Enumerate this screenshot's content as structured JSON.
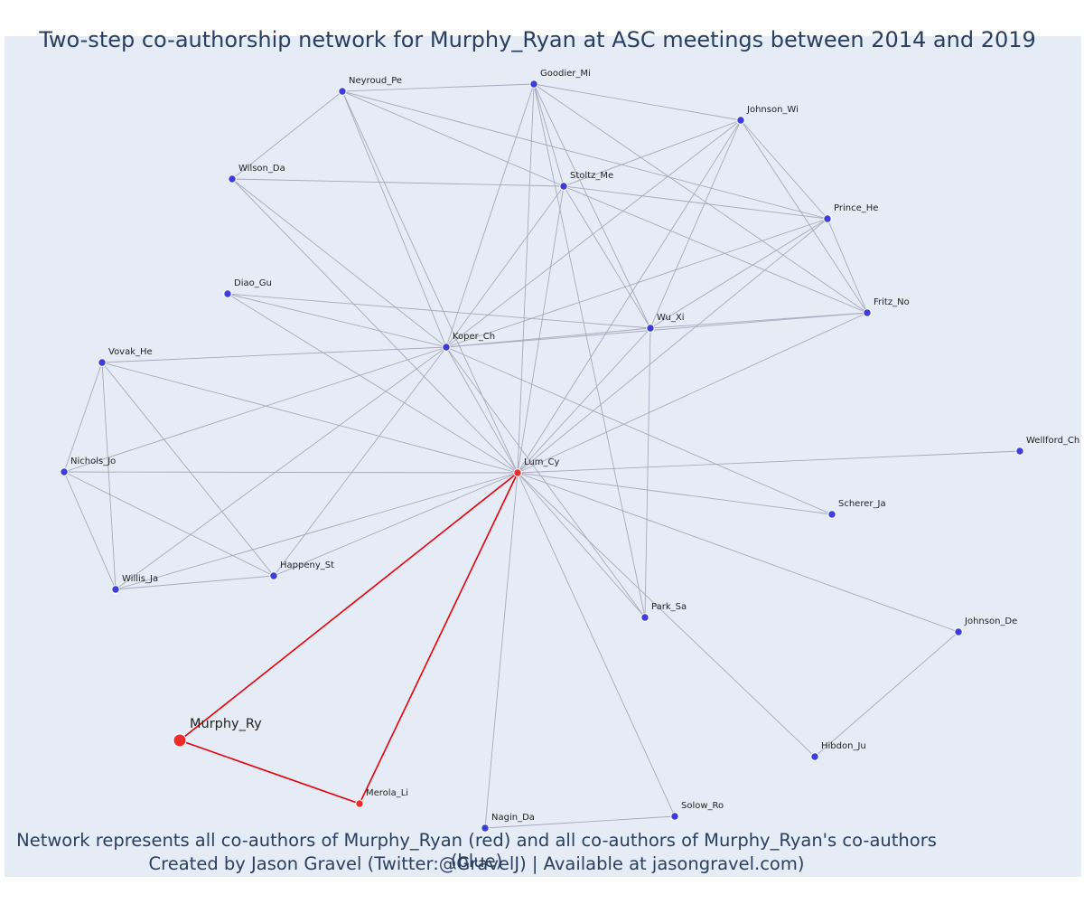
{
  "title": "Two-step co-authorship network for Murphy_Ryan at ASC meetings between 2014 and 2019",
  "caption_line1": "Network represents all co-authors of Murphy_Ryan (red) and all co-authors of Murphy_Ryan's co-authors (blue)",
  "caption_line2": "Created by Jason Gravel (Twitter:@GravelJ) | Available at jasongravel.com)",
  "colors": {
    "plot_bg": "#e5ecf6",
    "edge": "#a8a8bc",
    "focal_edge": "#e8000b",
    "blue_node": "#3c3ce0",
    "red_node": "#ef2b2b",
    "text": "#2a3f5f"
  },
  "nodes": [
    {
      "id": "Murphy_Ry",
      "group": "focal"
    },
    {
      "id": "Lum_Cy",
      "group": "coauthor"
    },
    {
      "id": "Merola_Li",
      "group": "coauthor"
    },
    {
      "id": "Neyroud_Pe",
      "group": "second"
    },
    {
      "id": "Goodier_Mi",
      "group": "second"
    },
    {
      "id": "Johnson_Wi",
      "group": "second"
    },
    {
      "id": "Wilson_Da",
      "group": "second"
    },
    {
      "id": "Stoltz_Me",
      "group": "second"
    },
    {
      "id": "Prince_He",
      "group": "second"
    },
    {
      "id": "Diao_Gu",
      "group": "second"
    },
    {
      "id": "Fritz_No",
      "group": "second"
    },
    {
      "id": "Wu_Xi",
      "group": "second"
    },
    {
      "id": "Koper_Ch",
      "group": "second"
    },
    {
      "id": "Vovak_He",
      "group": "second"
    },
    {
      "id": "Wellford_Ch",
      "group": "second"
    },
    {
      "id": "Nichols_Jo",
      "group": "second"
    },
    {
      "id": "Scherer_Ja",
      "group": "second"
    },
    {
      "id": "Happeny_St",
      "group": "second"
    },
    {
      "id": "Willis_Ja",
      "group": "second"
    },
    {
      "id": "Park_Sa",
      "group": "second"
    },
    {
      "id": "Johnson_De",
      "group": "second"
    },
    {
      "id": "Hibdon_Ju",
      "group": "second"
    },
    {
      "id": "Solow_Ro",
      "group": "second"
    },
    {
      "id": "Nagin_Da",
      "group": "second"
    }
  ],
  "edges": [
    [
      "Murphy_Ry",
      "Lum_Cy"
    ],
    [
      "Murphy_Ry",
      "Merola_Li"
    ],
    [
      "Merola_Li",
      "Lum_Cy"
    ],
    [
      "Lum_Cy",
      "Neyroud_Pe"
    ],
    [
      "Lum_Cy",
      "Goodier_Mi"
    ],
    [
      "Lum_Cy",
      "Johnson_Wi"
    ],
    [
      "Lum_Cy",
      "Wilson_Da"
    ],
    [
      "Lum_Cy",
      "Stoltz_Me"
    ],
    [
      "Lum_Cy",
      "Prince_He"
    ],
    [
      "Lum_Cy",
      "Diao_Gu"
    ],
    [
      "Lum_Cy",
      "Fritz_No"
    ],
    [
      "Lum_Cy",
      "Wu_Xi"
    ],
    [
      "Lum_Cy",
      "Koper_Ch"
    ],
    [
      "Lum_Cy",
      "Vovak_He"
    ],
    [
      "Lum_Cy",
      "Wellford_Ch"
    ],
    [
      "Lum_Cy",
      "Nichols_Jo"
    ],
    [
      "Lum_Cy",
      "Scherer_Ja"
    ],
    [
      "Lum_Cy",
      "Happeny_St"
    ],
    [
      "Lum_Cy",
      "Willis_Ja"
    ],
    [
      "Lum_Cy",
      "Park_Sa"
    ],
    [
      "Lum_Cy",
      "Johnson_De"
    ],
    [
      "Lum_Cy",
      "Hibdon_Ju"
    ],
    [
      "Lum_Cy",
      "Solow_Ro"
    ],
    [
      "Lum_Cy",
      "Nagin_Da"
    ],
    [
      "Neyroud_Pe",
      "Goodier_Mi"
    ],
    [
      "Neyroud_Pe",
      "Wilson_Da"
    ],
    [
      "Neyroud_Pe",
      "Stoltz_Me"
    ],
    [
      "Neyroud_Pe",
      "Koper_Ch"
    ],
    [
      "Neyroud_Pe",
      "Prince_He"
    ],
    [
      "Goodier_Mi",
      "Johnson_Wi"
    ],
    [
      "Goodier_Mi",
      "Stoltz_Me"
    ],
    [
      "Goodier_Mi",
      "Koper_Ch"
    ],
    [
      "Goodier_Mi",
      "Wu_Xi"
    ],
    [
      "Goodier_Mi",
      "Fritz_No"
    ],
    [
      "Goodier_Mi",
      "Park_Sa"
    ],
    [
      "Johnson_Wi",
      "Stoltz_Me"
    ],
    [
      "Johnson_Wi",
      "Prince_He"
    ],
    [
      "Johnson_Wi",
      "Fritz_No"
    ],
    [
      "Johnson_Wi",
      "Wu_Xi"
    ],
    [
      "Johnson_Wi",
      "Koper_Ch"
    ],
    [
      "Wilson_Da",
      "Stoltz_Me"
    ],
    [
      "Wilson_Da",
      "Koper_Ch"
    ],
    [
      "Stoltz_Me",
      "Prince_He"
    ],
    [
      "Stoltz_Me",
      "Fritz_No"
    ],
    [
      "Stoltz_Me",
      "Wu_Xi"
    ],
    [
      "Stoltz_Me",
      "Koper_Ch"
    ],
    [
      "Prince_He",
      "Fritz_No"
    ],
    [
      "Prince_He",
      "Wu_Xi"
    ],
    [
      "Prince_He",
      "Koper_Ch"
    ],
    [
      "Diao_Gu",
      "Koper_Ch"
    ],
    [
      "Diao_Gu",
      "Wu_Xi"
    ],
    [
      "Fritz_No",
      "Wu_Xi"
    ],
    [
      "Fritz_No",
      "Koper_Ch"
    ],
    [
      "Wu_Xi",
      "Koper_Ch"
    ],
    [
      "Wu_Xi",
      "Park_Sa"
    ],
    [
      "Koper_Ch",
      "Vovak_He"
    ],
    [
      "Koper_Ch",
      "Nichols_Jo"
    ],
    [
      "Koper_Ch",
      "Happeny_St"
    ],
    [
      "Koper_Ch",
      "Willis_Ja"
    ],
    [
      "Koper_Ch",
      "Scherer_Ja"
    ],
    [
      "Koper_Ch",
      "Park_Sa"
    ],
    [
      "Vovak_He",
      "Nichols_Jo"
    ],
    [
      "Vovak_He",
      "Willis_Ja"
    ],
    [
      "Vovak_He",
      "Happeny_St"
    ],
    [
      "Nichols_Jo",
      "Willis_Ja"
    ],
    [
      "Nichols_Jo",
      "Happeny_St"
    ],
    [
      "Happeny_St",
      "Willis_Ja"
    ],
    [
      "Johnson_De",
      "Hibdon_Ju"
    ],
    [
      "Solow_Ro",
      "Nagin_Da"
    ]
  ]
}
